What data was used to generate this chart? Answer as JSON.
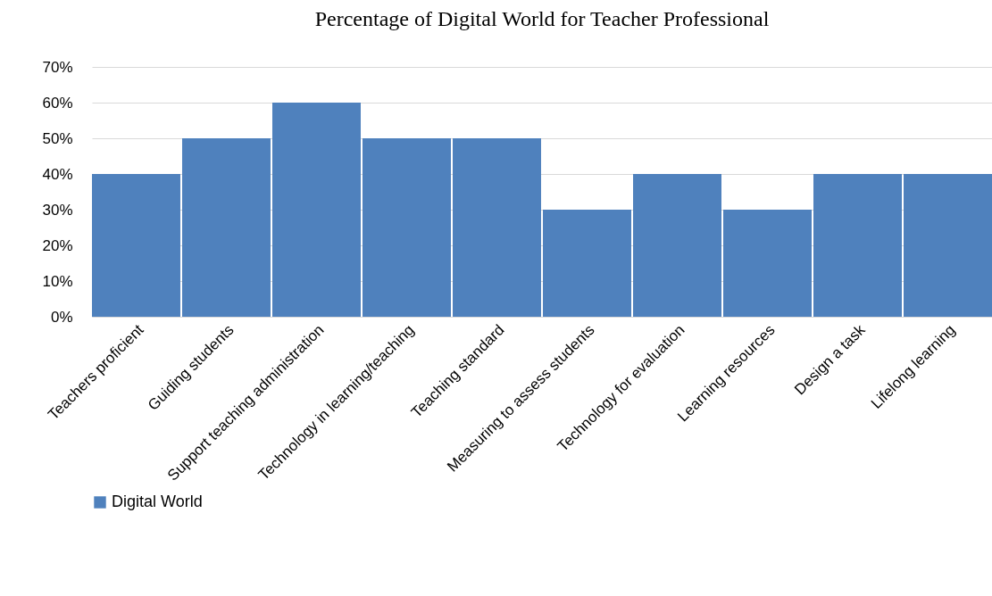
{
  "chart_data": {
    "type": "bar",
    "title": "Percentage of Digital World for Teacher Professional",
    "categories": [
      "Teachers proficient",
      "Guiding students",
      "Support teaching administration",
      "Technology in learning/teaching",
      "Teaching  standard",
      "Measuring to assess students",
      "Technology for evaluation",
      "Learning resources",
      "Design a task",
      "Lifelong learning"
    ],
    "series": [
      {
        "name": "Digital World",
        "color": "#4f81bd",
        "values": [
          40,
          50,
          60,
          50,
          50,
          30,
          40,
          30,
          40,
          40
        ]
      }
    ],
    "ylim": [
      0,
      70
    ],
    "yticks": [
      {
        "value": 0,
        "label": "0%"
      },
      {
        "value": 10,
        "label": "10%"
      },
      {
        "value": 20,
        "label": "20%"
      },
      {
        "value": 30,
        "label": "30%"
      },
      {
        "value": 40,
        "label": "40%"
      },
      {
        "value": 50,
        "label": "50%"
      },
      {
        "value": 60,
        "label": "60%"
      },
      {
        "value": 70,
        "label": "70%"
      }
    ],
    "grid": "y",
    "legend": "bottom"
  }
}
